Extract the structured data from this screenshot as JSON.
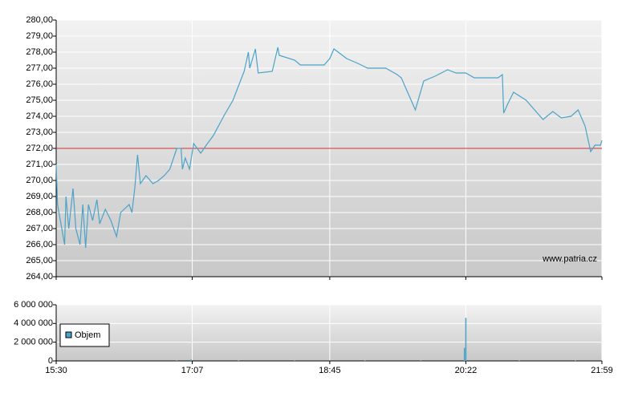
{
  "chart_data": [
    {
      "type": "line",
      "color": "#4ba3c8",
      "x": [
        "15:30",
        "15:31",
        "15:33",
        "15:36",
        "15:37",
        "15:39",
        "15:42",
        "15:44",
        "15:47",
        "15:49",
        "15:51",
        "15:53",
        "15:56",
        "15:59",
        "16:01",
        "16:05",
        "16:09",
        "16:13",
        "16:16",
        "16:22",
        "16:24",
        "16:26",
        "16:28",
        "16:30",
        "16:34",
        "16:39",
        "16:43",
        "16:47",
        "16:51",
        "16:56",
        "16:59",
        "17:00",
        "17:02",
        "17:05",
        "17:08",
        "17:13",
        "17:17",
        "17:22",
        "17:30",
        "17:36",
        "17:40",
        "17:44",
        "17:47",
        "17:48",
        "17:52",
        "17:54",
        "18:04",
        "18:08",
        "18:09",
        "18:20",
        "18:24",
        "18:41",
        "18:45",
        "18:48",
        "18:57",
        "19:05",
        "19:12",
        "19:25",
        "19:33",
        "19:36",
        "19:46",
        "19:52",
        "20:00",
        "20:09",
        "20:15",
        "20:22",
        "20:28",
        "20:45",
        "20:48",
        "20:49",
        "20:52",
        "20:56",
        "21:05",
        "21:10",
        "21:17",
        "21:24",
        "21:30",
        "21:37",
        "21:42",
        "21:47",
        "21:51",
        "21:54",
        "21:58",
        "21:59"
      ],
      "values": [
        271.0,
        268.5,
        267.5,
        266.0,
        269.0,
        267.0,
        269.5,
        267.0,
        266.0,
        268.5,
        265.8,
        268.5,
        267.5,
        268.8,
        267.3,
        268.2,
        267.5,
        266.5,
        268.0,
        268.5,
        268.0,
        269.5,
        271.6,
        269.8,
        270.3,
        269.8,
        270.0,
        270.3,
        270.7,
        272.0,
        272.0,
        270.7,
        271.4,
        270.7,
        272.3,
        271.7,
        272.2,
        272.8,
        274.1,
        275.0,
        275.9,
        276.8,
        278.0,
        277.0,
        278.2,
        276.7,
        276.8,
        278.3,
        277.8,
        277.5,
        277.2,
        277.2,
        277.6,
        278.2,
        277.6,
        277.3,
        277.0,
        277.0,
        276.6,
        276.4,
        274.4,
        276.2,
        276.5,
        276.9,
        276.7,
        276.7,
        276.4,
        276.4,
        276.6,
        274.2,
        274.8,
        275.5,
        275.0,
        274.5,
        273.8,
        274.3,
        273.9,
        274.0,
        274.4,
        273.4,
        271.8,
        272.2,
        272.2,
        272.5
      ],
      "reference_line": 272,
      "reference_color": "#cc3333",
      "xlim": [
        "15:30",
        "21:59"
      ],
      "xticks": [
        "15:30",
        "17:07",
        "18:45",
        "20:22",
        "21:59"
      ],
      "ylim": [
        264,
        280
      ],
      "yticks": [
        {
          "value": 264,
          "label": "264,00"
        },
        {
          "value": 265,
          "label": "265,00"
        },
        {
          "value": 266,
          "label": "266,00"
        },
        {
          "value": 267,
          "label": "267,00"
        },
        {
          "value": 268,
          "label": "268,00"
        },
        {
          "value": 269,
          "label": "269,00"
        },
        {
          "value": 270,
          "label": "270,00"
        },
        {
          "value": 271,
          "label": "271,00"
        },
        {
          "value": 272,
          "label": "272,00"
        },
        {
          "value": 273,
          "label": "273,00"
        },
        {
          "value": 274,
          "label": "274,00"
        },
        {
          "value": 275,
          "label": "275,00"
        },
        {
          "value": 276,
          "label": "276,00"
        },
        {
          "value": 277,
          "label": "277,00"
        },
        {
          "value": 278,
          "label": "278,00"
        },
        {
          "value": 279,
          "label": "279,00"
        },
        {
          "value": 280,
          "label": "280,00"
        }
      ],
      "watermark": "www.patria.cz",
      "grid": true
    },
    {
      "type": "bar",
      "x": [
        "16:56",
        "17:06",
        "17:40",
        "18:20",
        "19:10",
        "19:50",
        "20:21",
        "20:22",
        "21:00",
        "21:40"
      ],
      "series": [
        {
          "name": "Objem",
          "color": "#4ba3c8",
          "values": [
            60000,
            150000,
            50000,
            70000,
            40000,
            60000,
            1400000,
            4600000,
            50000,
            60000
          ]
        }
      ],
      "xlim": [
        "15:30",
        "21:59"
      ],
      "xticks": [
        "15:30",
        "17:07",
        "18:45",
        "20:22",
        "21:59"
      ],
      "ylim": [
        0,
        6000000
      ],
      "yticks": [
        0,
        {
          "value": 2000000,
          "label": "2 000 000"
        },
        {
          "value": 4000000,
          "label": "4 000 000"
        },
        {
          "value": 6000000,
          "label": "6 000 000"
        }
      ],
      "grid": true,
      "legend": "lower-left"
    }
  ]
}
